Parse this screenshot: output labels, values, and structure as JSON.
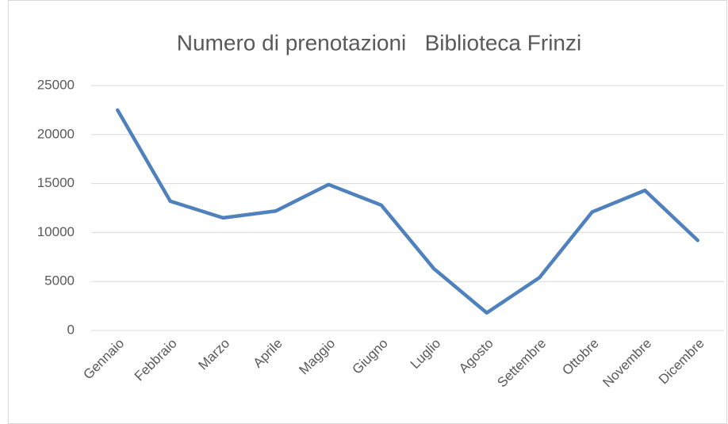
{
  "chart_data": {
    "type": "line",
    "title": "Numero di prenotazioni   Biblioteca Frinzi",
    "categories": [
      "Gennaio",
      "Febbraio",
      "Marzo",
      "Aprile",
      "Maggio",
      "Giugno",
      "Luglio",
      "Agosto",
      "Settembre",
      "Ottobre",
      "Novembre",
      "Dicembre"
    ],
    "values": [
      22500,
      13200,
      11500,
      12200,
      14900,
      12800,
      6300,
      1800,
      5400,
      12100,
      14300,
      9200
    ],
    "color": "#4f81bd",
    "ylim": [
      0,
      25000
    ],
    "yticks": [
      0,
      5000,
      10000,
      15000,
      20000,
      25000
    ],
    "grid": true
  }
}
